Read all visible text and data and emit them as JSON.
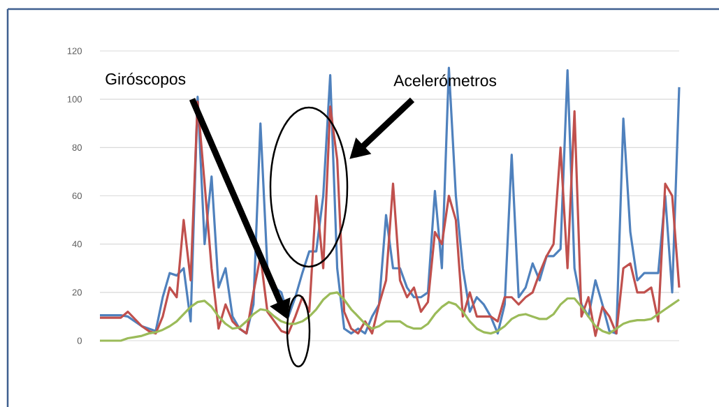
{
  "chart_data": {
    "type": "line",
    "categories": [
      null,
      null,
      null,
      null,
      null,
      null,
      null,
      null,
      null,
      null,
      null,
      null,
      null,
      null,
      null,
      null,
      null,
      null,
      null,
      null,
      null,
      null,
      null,
      null,
      null,
      null,
      null,
      null,
      null,
      null,
      null,
      null,
      null,
      null,
      null,
      null,
      null,
      null,
      null,
      null,
      null,
      null,
      null,
      null,
      null,
      null,
      null,
      null,
      null,
      null,
      null,
      null,
      null,
      null,
      null,
      null,
      null,
      null,
      null,
      null,
      null,
      null,
      null,
      null,
      null,
      null,
      null,
      null,
      null,
      null,
      null,
      null,
      null,
      null,
      null,
      null,
      null,
      null,
      null,
      null,
      null,
      null,
      null,
      null
    ],
    "series": [
      {
        "color": "#4f81bd",
        "values": [
          10.5,
          10.5,
          10.5,
          10.5,
          10,
          8,
          6,
          5,
          4,
          18,
          28,
          27,
          30,
          8,
          101,
          40,
          68,
          22,
          30,
          10,
          5,
          3,
          15,
          90,
          30,
          22,
          20,
          10,
          18,
          28,
          37,
          37,
          60,
          110,
          30,
          5,
          3,
          5,
          3,
          10,
          15,
          52,
          30,
          30,
          22,
          18,
          18,
          20,
          62,
          30,
          113,
          60,
          30,
          12,
          18,
          15,
          10,
          3,
          15,
          77,
          18,
          22,
          32,
          25,
          35,
          35,
          38,
          112,
          30,
          15,
          10,
          25,
          15,
          4,
          3,
          92,
          45,
          25,
          28,
          28,
          28,
          60,
          20,
          105
        ]
      },
      {
        "color": "#c0504d",
        "values": [
          9.5,
          9.5,
          9.5,
          9.5,
          12,
          9,
          6,
          4,
          3,
          10,
          22,
          18,
          50,
          25,
          99,
          65,
          30,
          5,
          15,
          8,
          5,
          3,
          20,
          35,
          12,
          8,
          4,
          3,
          10,
          18,
          12,
          60,
          30,
          97,
          75,
          12,
          5,
          3,
          8,
          3,
          15,
          25,
          65,
          25,
          18,
          22,
          12,
          16,
          45,
          40,
          60,
          50,
          10,
          20,
          10,
          10,
          10,
          8,
          18,
          18,
          15,
          18,
          20,
          28,
          35,
          40,
          80,
          30,
          95,
          10,
          18,
          2,
          14,
          10,
          3,
          30,
          32,
          20,
          20,
          22,
          8,
          65,
          60,
          22
        ]
      },
      {
        "color": "#9bbb59",
        "values": [
          0,
          0,
          0,
          0,
          1,
          1.5,
          2,
          3,
          3.5,
          4.5,
          6,
          8,
          11,
          14,
          16,
          16.5,
          14,
          10,
          7,
          5,
          5.5,
          8,
          11,
          13,
          12.5,
          10,
          8,
          7,
          7,
          8,
          10,
          13,
          17,
          19.5,
          20,
          17,
          13,
          10,
          7,
          5,
          6,
          8,
          8,
          8,
          6,
          5,
          5,
          7,
          11,
          14,
          16,
          15,
          12,
          8,
          5,
          3.5,
          3,
          4,
          6,
          9,
          10.5,
          11,
          10,
          9,
          9,
          11,
          15,
          17.5,
          17.5,
          14,
          10,
          6,
          4,
          3,
          5,
          7,
          8,
          8.5,
          8.5,
          9,
          11,
          13,
          15,
          17
        ]
      }
    ],
    "ylim": [
      0,
      120
    ],
    "yticks": [
      0,
      20,
      40,
      60,
      80,
      100,
      120
    ],
    "grid": "y",
    "annotations": [
      "Giróscopos",
      "Acelerómetros"
    ]
  }
}
